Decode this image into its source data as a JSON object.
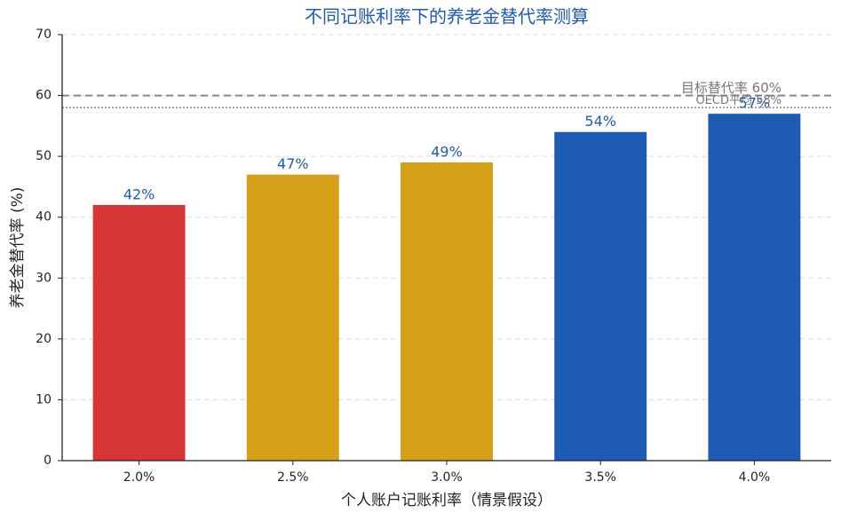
{
  "chart_data": {
    "type": "bar",
    "title": "不同记账利率下的养老金替代率测算",
    "xlabel": "个人账户记账利率（情景假设）",
    "ylabel": "养老金替代率 (%)",
    "categories": [
      "2.0%",
      "2.5%",
      "3.0%",
      "3.5%",
      "4.0%"
    ],
    "values": [
      42,
      47,
      49,
      54,
      57
    ],
    "value_labels": [
      "42%",
      "47%",
      "49%",
      "54%",
      "57%"
    ],
    "colors": [
      "#d73535",
      "#d4a017",
      "#d4a017",
      "#1f5bb5",
      "#1f5bb5"
    ],
    "ylim": [
      0,
      70
    ],
    "yticks": [
      0,
      10,
      20,
      30,
      40,
      50,
      60,
      70
    ],
    "grid": true,
    "reference_lines": [
      {
        "value": 60,
        "label": "目标替代率 60%",
        "style": "dashed"
      },
      {
        "value": 58,
        "label": "OECD平均 58%",
        "style": "dotted"
      }
    ]
  }
}
